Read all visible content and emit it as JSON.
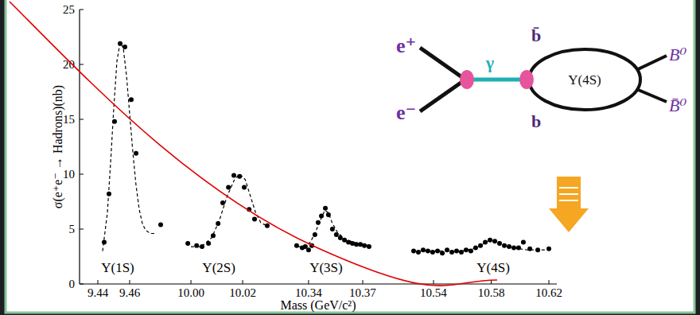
{
  "chart_data": [
    {
      "type": "scatter",
      "ylabel": "σ(e⁺e⁻ → Hadrons)(nb)",
      "xlim": [
        9.4285,
        9.486
      ],
      "xticks": [
        9.44,
        9.46
      ],
      "ylim": [
        0,
        25
      ],
      "yticks": [
        0,
        5,
        10,
        15,
        20,
        25
      ],
      "tick_labels": true,
      "series": [
        {
          "type": "scatter",
          "marker": "circle",
          "color": "#000000",
          "x": [
            9.444,
            9.447,
            9.4505,
            9.454,
            9.457,
            9.461,
            9.464,
            9.4795
          ],
          "values": [
            3.8,
            8.2,
            14.8,
            21.9,
            21.6,
            16.8,
            11.9,
            5.4
          ]
        },
        {
          "type": "line",
          "line_style": "dashed",
          "color": "#000000",
          "x": [
            9.443,
            9.446,
            9.448,
            9.45,
            9.452,
            9.454,
            9.456,
            9.458,
            9.46,
            9.462,
            9.464,
            9.466,
            9.468,
            9.47,
            9.473,
            9.476
          ],
          "values": [
            3.0,
            6.5,
            11,
            16,
            20.3,
            22.0,
            21.5,
            19,
            15.5,
            12,
            9,
            6.8,
            5.5,
            4.9,
            4.6,
            4.6
          ]
        }
      ],
      "annotations": [
        {
          "text": "Υ(1S)",
          "x": 9.4525,
          "y": 1.1
        }
      ]
    },
    {
      "type": "scatter",
      "xlim": [
        9.9923,
        10.0369
      ],
      "xticks": [
        {
          "value": 10,
          "label": "10.00"
        },
        10.02
      ],
      "ylim": [
        0,
        25
      ],
      "tick_labels": "x",
      "series": [
        {
          "type": "scatter",
          "marker": "circle",
          "color": "#000000",
          "x": [
            9.9988,
            10.0022,
            10.0043,
            10.0068,
            10.0086,
            10.0105,
            10.0123,
            10.0145,
            10.0166,
            10.0188,
            10.0206,
            10.0225,
            10.0246,
            10.0295
          ],
          "values": [
            3.7,
            3.5,
            3.4,
            3.7,
            4.4,
            5.5,
            7.4,
            8.8,
            9.9,
            9.8,
            8.8,
            6.8,
            5.9,
            5.3
          ]
        },
        {
          "type": "line",
          "line_style": "dashed",
          "color": "#000000",
          "x": [
            10.0,
            10.004,
            10.008,
            10.011,
            10.014,
            10.017,
            10.019,
            10.021,
            10.023,
            10.025,
            10.027,
            10.03
          ],
          "values": [
            3.4,
            3.4,
            4.2,
            5.8,
            8.0,
            9.6,
            10.0,
            9.5,
            8.0,
            6.5,
            5.6,
            5.2
          ]
        }
      ],
      "annotations": [
        {
          "text": "Υ(2S)",
          "x": 10.0108,
          "y": 1.1
        }
      ]
    },
    {
      "type": "scatter",
      "xlim": [
        10.3277,
        10.3938
      ],
      "xticks": [
        10.34,
        10.37
      ],
      "ylim": [
        0,
        25
      ],
      "tick_labels": "x",
      "series": [
        {
          "type": "scatter",
          "marker": "circle",
          "color": "#000000",
          "x": [
            10.3334,
            10.3365,
            10.3382,
            10.34,
            10.3418,
            10.3435,
            10.3453,
            10.3471,
            10.3493,
            10.351,
            10.3532,
            10.3554,
            10.3576,
            10.3599,
            10.3621,
            10.3643,
            10.3665,
            10.3687,
            10.3709,
            10.3735
          ],
          "values": [
            3.5,
            3.3,
            3.4,
            3.1,
            3.5,
            4.5,
            5.6,
            6.2,
            6.9,
            6.3,
            5.0,
            4.5,
            4.2,
            4.0,
            3.8,
            3.7,
            3.6,
            3.6,
            3.5,
            3.4
          ]
        },
        {
          "type": "line",
          "line_style": "dashed",
          "color": "#000000",
          "x": [
            10.334,
            10.338,
            10.341,
            10.344,
            10.347,
            10.349,
            10.351,
            10.353,
            10.356,
            10.36,
            10.365,
            10.37,
            10.374
          ],
          "values": [
            3.4,
            3.4,
            3.8,
            4.8,
            6.0,
            6.7,
            6.5,
            5.6,
            4.7,
            4.1,
            3.8,
            3.6,
            3.5
          ]
        }
      ],
      "annotations": [
        {
          "text": "Υ(3S)",
          "x": 10.3497,
          "y": 1.1
        }
      ]
    },
    {
      "type": "scatter",
      "xlim": [
        10.5207,
        10.6255
      ],
      "xticks": [
        10.54,
        10.58,
        10.62
      ],
      "ylim": [
        0,
        25
      ],
      "tick_labels": "x",
      "series": [
        {
          "type": "scatter",
          "marker": "circle",
          "color": "#000000",
          "x": [
            10.5262,
            10.5295,
            10.5328,
            10.5361,
            10.5394,
            10.5428,
            10.5461,
            10.5494,
            10.5527,
            10.556,
            10.5593,
            10.5626,
            10.5659,
            10.5692,
            10.5726,
            10.5759,
            10.5792,
            10.5825,
            10.5858,
            10.5891,
            10.5924,
            10.5957,
            10.599,
            10.6023,
            10.6068,
            10.6123,
            10.62
          ],
          "values": [
            3.0,
            2.9,
            3.1,
            3.0,
            2.9,
            3.0,
            2.8,
            3.1,
            2.9,
            3.0,
            2.9,
            3.1,
            3.0,
            3.3,
            3.5,
            3.8,
            4.0,
            3.9,
            3.7,
            3.5,
            3.4,
            3.3,
            3.3,
            3.8,
            3.2,
            3.1,
            3.2
          ]
        },
        {
          "type": "line",
          "line_style": "dashed",
          "color": "#000000",
          "x": [
            10.525,
            10.56,
            10.57,
            10.578,
            10.582,
            10.588,
            10.595,
            10.605,
            10.62
          ],
          "values": [
            3.0,
            3.0,
            3.3,
            3.9,
            4.0,
            3.7,
            3.3,
            3.1,
            3.1
          ]
        }
      ],
      "annotations": [
        {
          "text": "Υ(4S)",
          "x": 10.5814,
          "y": 1.1
        }
      ]
    }
  ],
  "figure": {
    "xlabel": "Mass (GeV/c²)"
  },
  "diagram": {
    "labels": {
      "positron": "e⁺",
      "electron": "e⁻",
      "photon": "γ",
      "antiquark": "b̄",
      "quark": "b",
      "resonance": "Υ(4S)",
      "meson": "B⁰",
      "antimeson": "B̄⁰"
    }
  }
}
